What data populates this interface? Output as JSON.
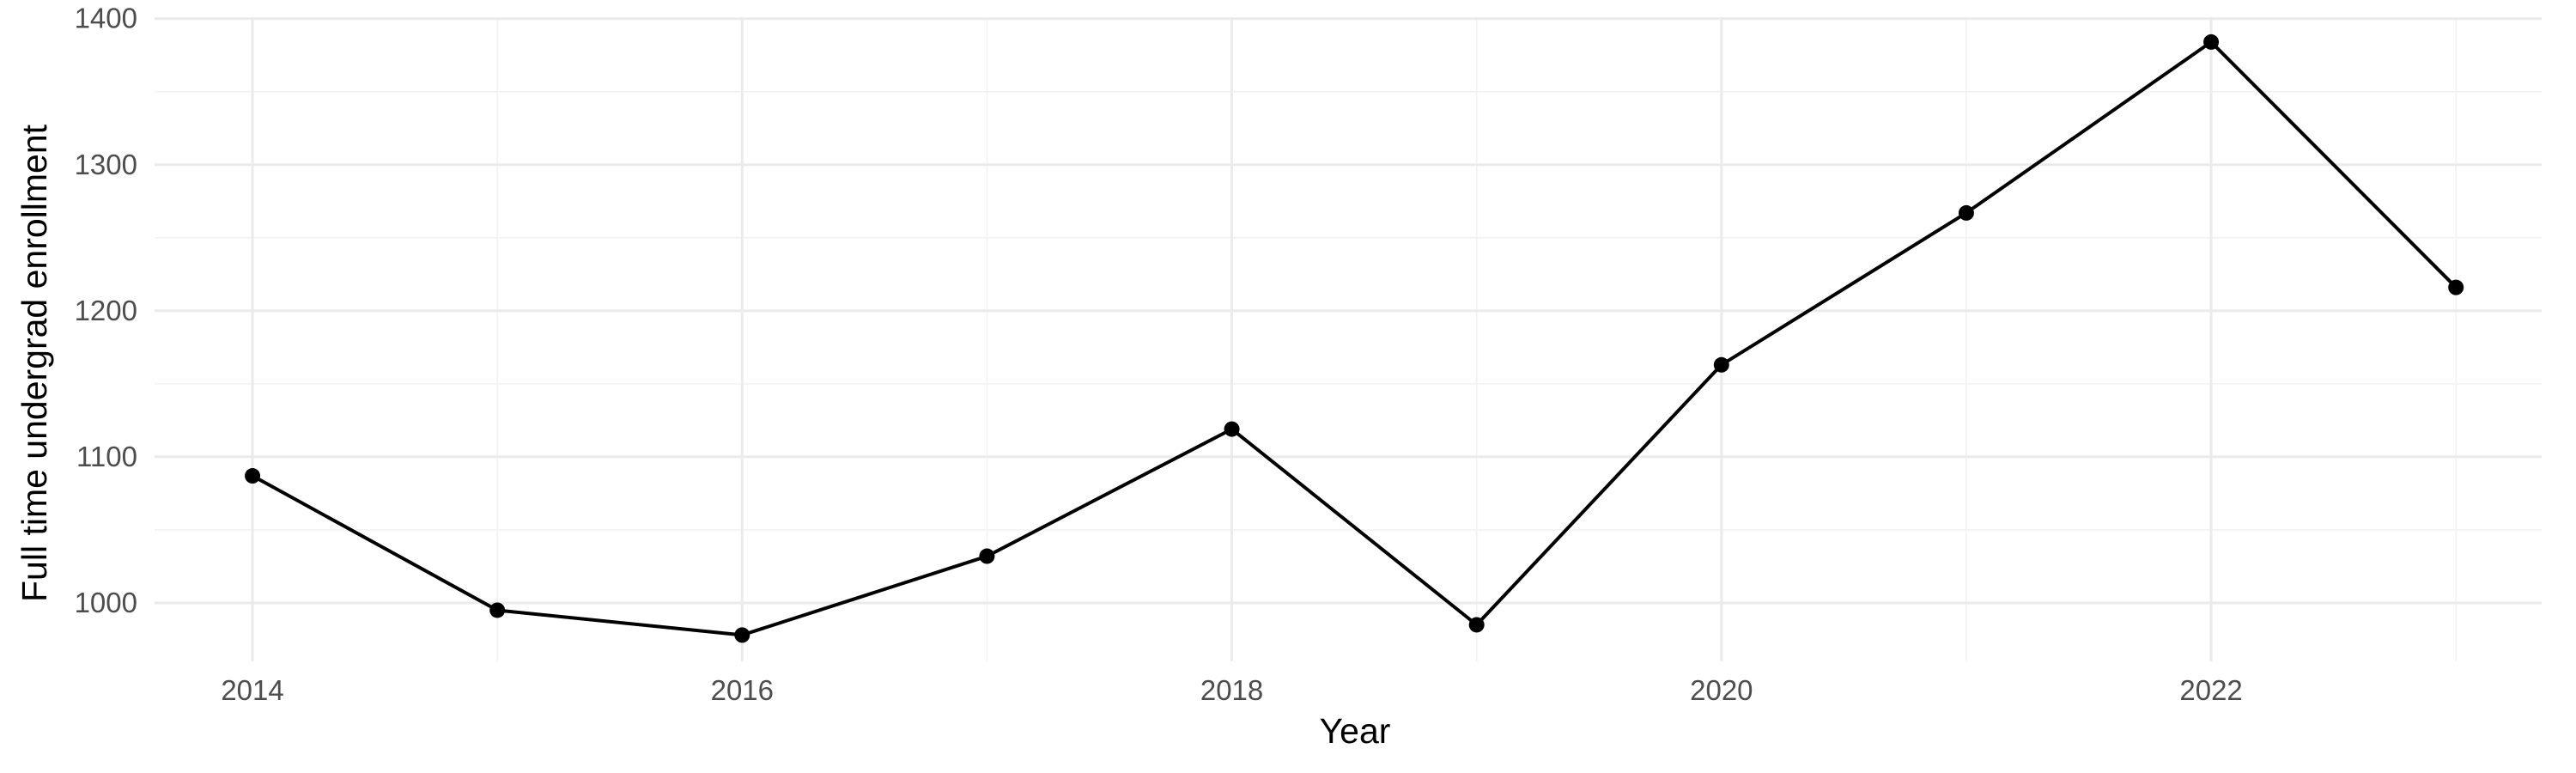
{
  "chart_data": {
    "type": "line",
    "title": "",
    "xlabel": "Year",
    "ylabel": "Full time undergrad enrollment",
    "x": [
      2014,
      2015,
      2016,
      2017,
      2018,
      2019,
      2020,
      2021,
      2022,
      2023
    ],
    "series": [
      {
        "values": [
          1087,
          995,
          978,
          1032,
          1119,
          985,
          1163,
          1267,
          1384,
          1216
        ]
      }
    ],
    "x_ticks": [
      "2014",
      "2016",
      "2018",
      "2020",
      "2022"
    ],
    "y_ticks": [
      "1000",
      "1100",
      "1200",
      "1300",
      "1400"
    ],
    "xlim": [
      2013.6,
      2023.35
    ],
    "ylim": [
      960,
      1401
    ],
    "grid": true,
    "legend": "none",
    "colors": {
      "line": "#000000",
      "point": "#000000",
      "grid": "#ebebeb",
      "tick_text": "#4d4d4d"
    }
  }
}
